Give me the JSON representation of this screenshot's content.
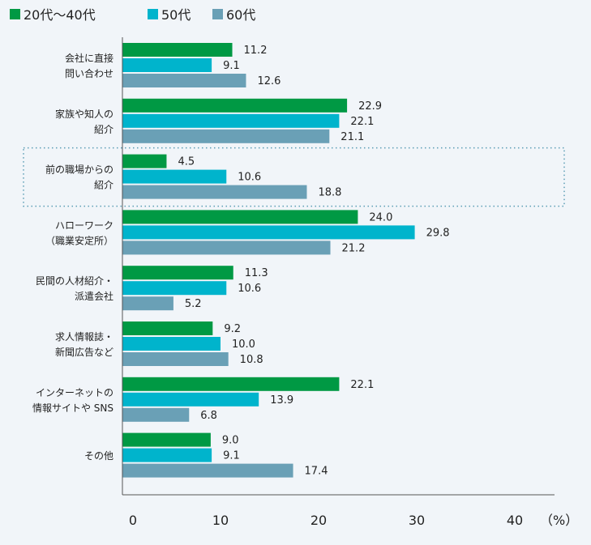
{
  "chart_data": {
    "type": "bar",
    "orientation": "horizontal",
    "title": "",
    "xlabel": "",
    "ylabel": "",
    "unit_label": "（%）",
    "xlim": [
      0,
      40
    ],
    "xticks": [
      "0",
      "10",
      "20",
      "30",
      "40"
    ],
    "legend_position": "top-left",
    "grid": false,
    "categories": [
      [
        "会社に直接",
        "問い合わせ"
      ],
      [
        "家族や知人の",
        "紹介"
      ],
      [
        "前の職場からの",
        "紹介"
      ],
      [
        "ハローワーク",
        "（職業安定所）"
      ],
      [
        "民間の人材紹介・",
        "派遣会社"
      ],
      [
        "求人情報誌・",
        "新聞広告など"
      ],
      [
        "インターネットの",
        "情報サイトや SNS"
      ],
      [
        "その他"
      ]
    ],
    "highlighted_category_index": 2,
    "series": [
      {
        "name": "20代〜40代",
        "color": "#009944",
        "values": [
          11.2,
          22.9,
          4.5,
          24.0,
          11.3,
          9.2,
          22.1,
          9.0
        ],
        "labels": [
          "11.2",
          "22.9",
          "4.5",
          "24.0",
          "11.3",
          "9.2",
          "22.1",
          "9.0"
        ]
      },
      {
        "name": "50代",
        "color": "#00b4cc",
        "values": [
          9.1,
          22.1,
          10.6,
          29.8,
          10.6,
          10.0,
          13.9,
          9.1
        ],
        "labels": [
          "9.1",
          "22.1",
          "10.6",
          "29.8",
          "10.6",
          "10.0",
          "13.9",
          "9.1"
        ]
      },
      {
        "name": "60代",
        "color": "#6aa0b6",
        "values": [
          12.6,
          21.1,
          18.8,
          21.2,
          5.2,
          10.8,
          6.8,
          17.4
        ],
        "labels": [
          "12.6",
          "21.1",
          "18.8",
          "21.2",
          "5.2",
          "10.8",
          "6.8",
          "17.4"
        ]
      }
    ]
  }
}
